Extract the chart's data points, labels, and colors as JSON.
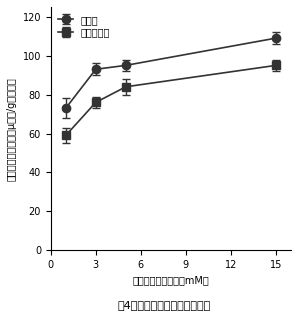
{
  "title": "図4　地上部硝酸塩濃度の比較",
  "xlabel": "培地中硝酸塩濃度（mM）",
  "ylabel": "地上部硝酸塩濃度（µモル/g新鮮物）",
  "x_ticks": [
    0,
    3,
    6,
    9,
    12,
    15
  ],
  "xlim": [
    0,
    16
  ],
  "ylim": [
    0,
    125
  ],
  "y_ticks": [
    0,
    20,
    40,
    60,
    80,
    100,
    120
  ],
  "series": [
    {
      "label": "野生型",
      "x": [
        1,
        3,
        5,
        15
      ],
      "y": [
        73,
        93,
        95,
        109
      ],
      "yerr": [
        5,
        3,
        3,
        3
      ],
      "marker": "o",
      "color": "#333333",
      "markersize": 6,
      "fillstyle": "full"
    },
    {
      "label": "突然変異体",
      "x": [
        1,
        3,
        5,
        15
      ],
      "y": [
        59,
        76,
        84,
        95
      ],
      "yerr": [
        4,
        3,
        4,
        3
      ],
      "marker": "s",
      "color": "#333333",
      "markersize": 6,
      "fillstyle": "full"
    }
  ],
  "legend_loc": "upper left",
  "legend_fontsize": 7,
  "axis_fontsize": 7,
  "tick_fontsize": 7,
  "title_fontsize": 8,
  "linewidth": 1.2,
  "background_color": "#ffffff"
}
